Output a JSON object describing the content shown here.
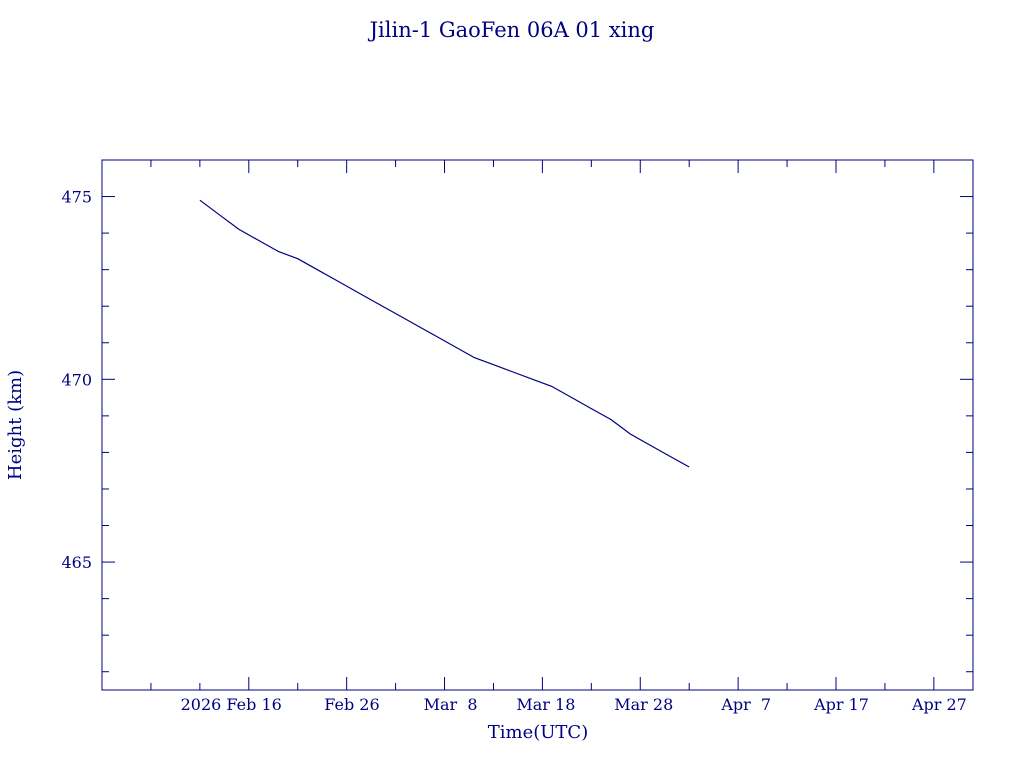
{
  "colors": {
    "ink": "#000080",
    "background": "#ffffff"
  },
  "chart_data": {
    "type": "line",
    "title": "Jilin-1 GaoFen 06A 01 xing",
    "xlabel": "Time(UTC)",
    "ylabel": "Height (km)",
    "ylim": [
      461.5,
      476
    ],
    "xlim": [
      "2026-02-01",
      "2026-05-01"
    ],
    "x_ticks": [
      {
        "date": "2026-02-16",
        "label": "2026 Feb 16"
      },
      {
        "date": "2026-02-26",
        "label": "Feb 26"
      },
      {
        "date": "2026-03-08",
        "label": "Mar  8"
      },
      {
        "date": "2026-03-18",
        "label": "Mar 18"
      },
      {
        "date": "2026-03-28",
        "label": "Mar 28"
      },
      {
        "date": "2026-04-07",
        "label": "Apr  7"
      },
      {
        "date": "2026-04-17",
        "label": "Apr 17"
      },
      {
        "date": "2026-04-27",
        "label": "Apr 27"
      }
    ],
    "y_ticks": [
      465,
      470,
      475
    ],
    "grid": false,
    "series": [
      {
        "points": [
          {
            "x": "2026-02-11",
            "y": 474.9
          },
          {
            "x": "2026-02-13",
            "y": 474.5
          },
          {
            "x": "2026-02-15",
            "y": 474.1
          },
          {
            "x": "2026-02-17",
            "y": 473.8
          },
          {
            "x": "2026-02-19",
            "y": 473.5
          },
          {
            "x": "2026-02-21",
            "y": 473.3
          },
          {
            "x": "2026-02-23",
            "y": 473.0
          },
          {
            "x": "2026-02-25",
            "y": 472.7
          },
          {
            "x": "2026-02-27",
            "y": 472.4
          },
          {
            "x": "2026-03-01",
            "y": 472.1
          },
          {
            "x": "2026-03-03",
            "y": 471.8
          },
          {
            "x": "2026-03-05",
            "y": 471.5
          },
          {
            "x": "2026-03-07",
            "y": 471.2
          },
          {
            "x": "2026-03-09",
            "y": 470.9
          },
          {
            "x": "2026-03-11",
            "y": 470.6
          },
          {
            "x": "2026-03-13",
            "y": 470.4
          },
          {
            "x": "2026-03-15",
            "y": 470.2
          },
          {
            "x": "2026-03-17",
            "y": 470.0
          },
          {
            "x": "2026-03-19",
            "y": 469.8
          },
          {
            "x": "2026-03-21",
            "y": 469.5
          },
          {
            "x": "2026-03-23",
            "y": 469.2
          },
          {
            "x": "2026-03-25",
            "y": 468.9
          },
          {
            "x": "2026-03-27",
            "y": 468.5
          },
          {
            "x": "2026-03-29",
            "y": 468.2
          },
          {
            "x": "2026-03-31",
            "y": 467.9
          },
          {
            "x": "2026-04-02",
            "y": 467.6
          }
        ]
      }
    ]
  }
}
